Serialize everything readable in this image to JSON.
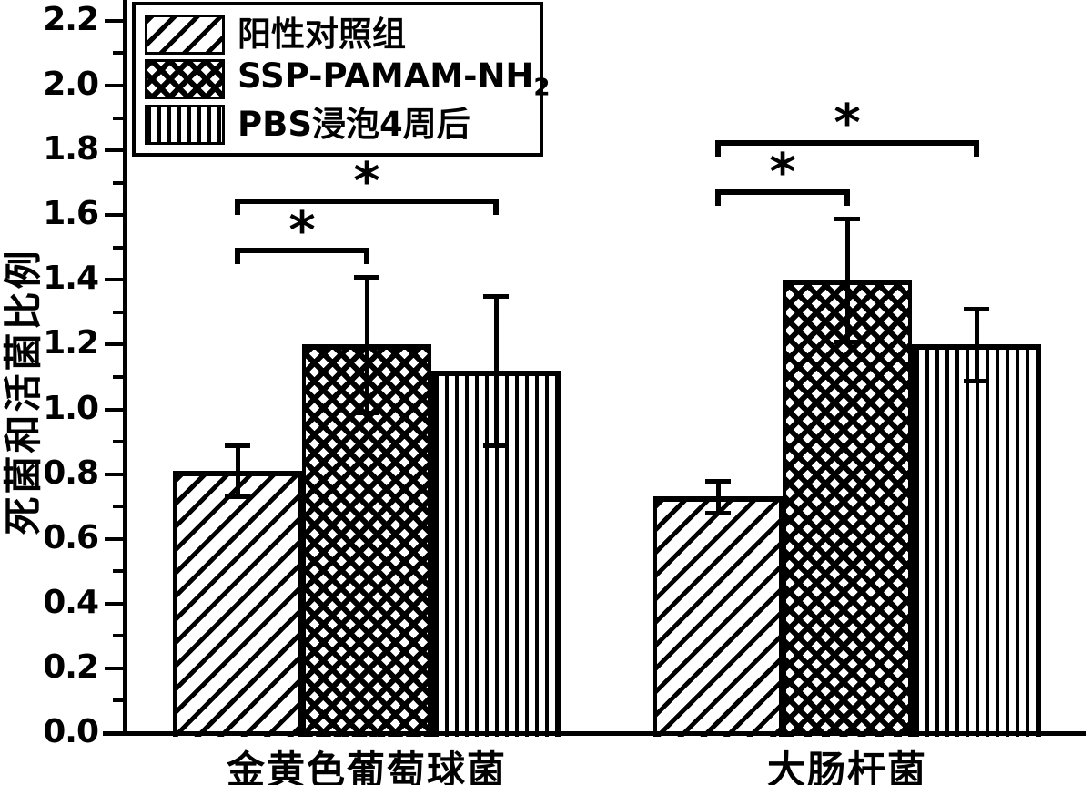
{
  "figure": {
    "background_color": "#ffffff",
    "ink_color": "#000000"
  },
  "chart_data": {
    "type": "bar",
    "title": "",
    "xlabel": "",
    "ylabel": "死菌和活菌比例",
    "ylim": [
      0.0,
      2.2
    ],
    "ytick_step": 0.2,
    "yticks": [
      "0.0",
      "0.2",
      "0.4",
      "0.6",
      "0.8",
      "1.0",
      "1.2",
      "1.4",
      "1.6",
      "1.8",
      "2.0",
      "2.2"
    ],
    "grid": false,
    "legend_position": "top-left",
    "categories": [
      "金黄色葡萄球菌",
      "大肠杆菌"
    ],
    "series": [
      {
        "name": "阳性对照组",
        "pattern": "diagonal-hatch",
        "values": [
          0.81,
          0.73
        ],
        "errors": [
          0.08,
          0.05
        ]
      },
      {
        "name": "SSP-PAMAM-NH2",
        "name_base": "SSP-PAMAM-NH",
        "name_sub": "2",
        "pattern": "crosshatch",
        "values": [
          1.2,
          1.4
        ],
        "errors": [
          0.21,
          0.19
        ]
      },
      {
        "name": "PBS浸泡4周后",
        "pattern": "vertical-stripes",
        "values": [
          1.12,
          1.2
        ],
        "errors": [
          0.23,
          0.11
        ]
      }
    ],
    "significance_brackets": [
      {
        "category_index": 0,
        "from_series": 0,
        "to_series": 1,
        "label": "*",
        "height": 1.5
      },
      {
        "category_index": 0,
        "from_series": 0,
        "to_series": 2,
        "label": "*",
        "height": 1.65
      },
      {
        "category_index": 1,
        "from_series": 0,
        "to_series": 1,
        "label": "*",
        "height": 1.68
      },
      {
        "category_index": 1,
        "from_series": 0,
        "to_series": 2,
        "label": "*",
        "height": 1.83
      }
    ]
  }
}
